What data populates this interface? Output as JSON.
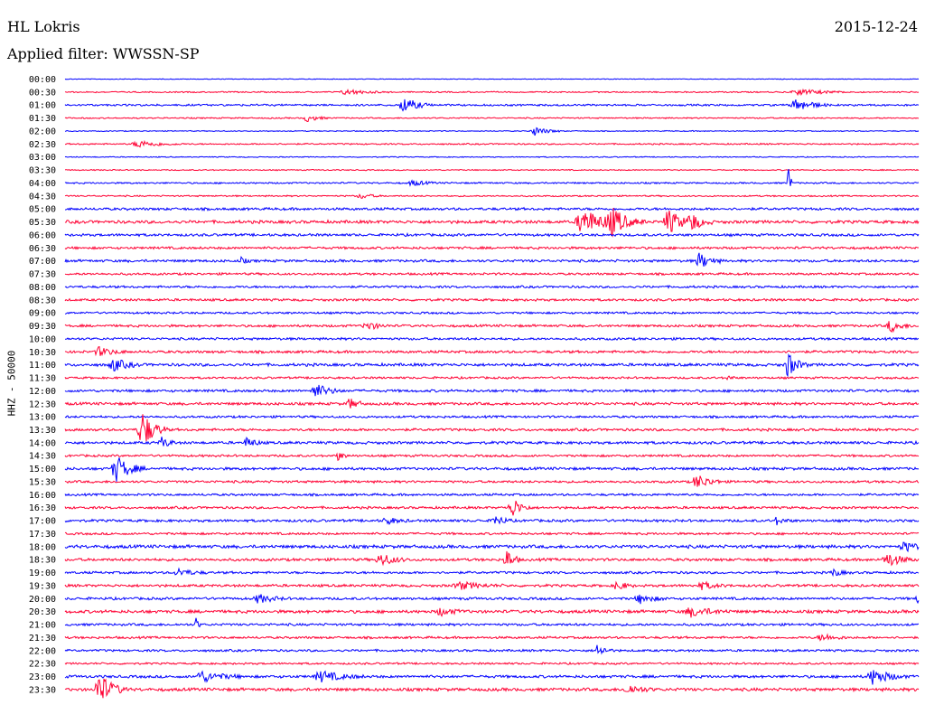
{
  "header": {
    "station": "HL Lokris",
    "date": "2015-12-24",
    "filter": "Applied filter: WWSSN-SP"
  },
  "colors": {
    "even_row": "#0000ff",
    "odd_row": "#ff0033"
  },
  "chart_data": {
    "type": "line",
    "title": "HL Lokris",
    "subtitle": "Applied filter: WWSSN-SP",
    "ylabel": "HHZ - 50000",
    "xlabel": "",
    "row_labels": [
      "00:00",
      "00:30",
      "01:00",
      "01:30",
      "02:00",
      "02:30",
      "03:00",
      "03:30",
      "04:00",
      "04:30",
      "05:00",
      "05:30",
      "06:00",
      "06:30",
      "07:00",
      "07:30",
      "08:00",
      "08:30",
      "09:00",
      "09:30",
      "10:00",
      "10:30",
      "11:00",
      "11:30",
      "12:00",
      "12:30",
      "13:00",
      "13:30",
      "14:00",
      "14:30",
      "15:00",
      "15:30",
      "16:00",
      "16:30",
      "17:00",
      "17:30",
      "18:00",
      "18:30",
      "19:00",
      "19:30",
      "20:00",
      "20:30",
      "21:00",
      "21:30",
      "22:00",
      "22:30",
      "23:00",
      "23:30"
    ],
    "x_range_minutes": [
      0,
      30
    ],
    "grid": false,
    "noise_level": [
      0.4,
      0.8,
      1.2,
      0.8,
      0.6,
      0.9,
      0.6,
      0.7,
      1.0,
      0.9,
      1.6,
      1.9,
      1.6,
      1.5,
      1.6,
      1.4,
      1.4,
      1.5,
      1.3,
      1.5,
      1.5,
      1.6,
      1.8,
      1.3,
      1.6,
      1.7,
      1.4,
      1.6,
      1.7,
      1.4,
      1.7,
      1.5,
      1.4,
      1.5,
      1.6,
      1.4,
      2.0,
      1.7,
      1.5,
      1.6,
      1.6,
      1.9,
      1.5,
      1.4,
      1.4,
      1.2,
      1.7,
      1.9
    ],
    "events": [
      {
        "row": 1,
        "minute": 9.9,
        "amp": 3,
        "dur": 1.5
      },
      {
        "row": 1,
        "minute": 25.8,
        "amp": 3,
        "dur": 2
      },
      {
        "row": 2,
        "minute": 11.9,
        "amp": 9,
        "dur": 1
      },
      {
        "row": 2,
        "minute": 25.7,
        "amp": 7,
        "dur": 1.2
      },
      {
        "row": 3,
        "minute": 8.5,
        "amp": 4,
        "dur": 0.8
      },
      {
        "row": 4,
        "minute": 16.5,
        "amp": 5,
        "dur": 1
      },
      {
        "row": 5,
        "minute": 2.6,
        "amp": 4,
        "dur": 1.5
      },
      {
        "row": 8,
        "minute": 25.4,
        "amp": 33,
        "dur": 0.15
      },
      {
        "row": 8,
        "minute": 12.2,
        "amp": 3,
        "dur": 1
      },
      {
        "row": 9,
        "minute": 10.4,
        "amp": 3,
        "dur": 0.8
      },
      {
        "row": 11,
        "minute": 18.2,
        "amp": 15,
        "dur": 1.5
      },
      {
        "row": 11,
        "minute": 19.2,
        "amp": 14,
        "dur": 1.2
      },
      {
        "row": 11,
        "minute": 21.2,
        "amp": 14,
        "dur": 1
      },
      {
        "row": 11,
        "minute": 22.0,
        "amp": 10,
        "dur": 0.8
      },
      {
        "row": 14,
        "minute": 22.3,
        "amp": 9,
        "dur": 0.8
      },
      {
        "row": 14,
        "minute": 6.2,
        "amp": 4,
        "dur": 0.3
      },
      {
        "row": 19,
        "minute": 10.6,
        "amp": 5,
        "dur": 0.8
      },
      {
        "row": 19,
        "minute": 29.0,
        "amp": 7,
        "dur": 0.8
      },
      {
        "row": 21,
        "minute": 1.2,
        "amp": 5,
        "dur": 1
      },
      {
        "row": 22,
        "minute": 1.7,
        "amp": 7,
        "dur": 1
      },
      {
        "row": 22,
        "minute": 25.4,
        "amp": 14,
        "dur": 0.7
      },
      {
        "row": 23,
        "minute": 23.3,
        "amp": 3,
        "dur": 0.3
      },
      {
        "row": 24,
        "minute": 8.8,
        "amp": 8,
        "dur": 1
      },
      {
        "row": 25,
        "minute": 10.0,
        "amp": 6,
        "dur": 0.6
      },
      {
        "row": 27,
        "minute": 2.7,
        "amp": 22,
        "dur": 0.9
      },
      {
        "row": 28,
        "minute": 3.4,
        "amp": 6,
        "dur": 0.6
      },
      {
        "row": 28,
        "minute": 6.4,
        "amp": 6,
        "dur": 0.6
      },
      {
        "row": 29,
        "minute": 9.6,
        "amp": 5,
        "dur": 0.4
      },
      {
        "row": 30,
        "minute": 1.8,
        "amp": 15,
        "dur": 1
      },
      {
        "row": 31,
        "minute": 22.2,
        "amp": 8,
        "dur": 1
      },
      {
        "row": 33,
        "minute": 15.7,
        "amp": 12,
        "dur": 0.7
      },
      {
        "row": 34,
        "minute": 15.1,
        "amp": 7,
        "dur": 0.6
      },
      {
        "row": 34,
        "minute": 11.3,
        "amp": 4,
        "dur": 0.8
      },
      {
        "row": 34,
        "minute": 25.0,
        "amp": 4,
        "dur": 0.6
      },
      {
        "row": 36,
        "minute": 29.5,
        "amp": 5,
        "dur": 1
      },
      {
        "row": 37,
        "minute": 11.1,
        "amp": 7,
        "dur": 1
      },
      {
        "row": 37,
        "minute": 15.5,
        "amp": 13,
        "dur": 0.5
      },
      {
        "row": 37,
        "minute": 28.9,
        "amp": 8,
        "dur": 1
      },
      {
        "row": 38,
        "minute": 4.0,
        "amp": 4,
        "dur": 1
      },
      {
        "row": 38,
        "minute": 27.0,
        "amp": 4,
        "dur": 0.6
      },
      {
        "row": 39,
        "minute": 13.9,
        "amp": 4,
        "dur": 1.5
      },
      {
        "row": 39,
        "minute": 19.4,
        "amp": 6,
        "dur": 0.6
      },
      {
        "row": 39,
        "minute": 22.4,
        "amp": 4,
        "dur": 1
      },
      {
        "row": 40,
        "minute": 6.8,
        "amp": 5,
        "dur": 1
      },
      {
        "row": 40,
        "minute": 20.2,
        "amp": 5,
        "dur": 1
      },
      {
        "row": 40,
        "minute": 30.0,
        "amp": 6,
        "dur": 0.6
      },
      {
        "row": 41,
        "minute": 22.0,
        "amp": 5,
        "dur": 1.5
      },
      {
        "row": 41,
        "minute": 13.2,
        "amp": 4,
        "dur": 1
      },
      {
        "row": 42,
        "minute": 4.6,
        "amp": 8,
        "dur": 0.2
      },
      {
        "row": 43,
        "minute": 26.6,
        "amp": 4,
        "dur": 1
      },
      {
        "row": 44,
        "minute": 18.7,
        "amp": 7,
        "dur": 0.6
      },
      {
        "row": 46,
        "minute": 4.8,
        "amp": 6,
        "dur": 1.5
      },
      {
        "row": 46,
        "minute": 9.0,
        "amp": 6,
        "dur": 1.5
      },
      {
        "row": 46,
        "minute": 28.4,
        "amp": 9,
        "dur": 1.2
      },
      {
        "row": 47,
        "minute": 1.2,
        "amp": 18,
        "dur": 1
      },
      {
        "row": 47,
        "minute": 19.8,
        "amp": 5,
        "dur": 1
      }
    ]
  }
}
